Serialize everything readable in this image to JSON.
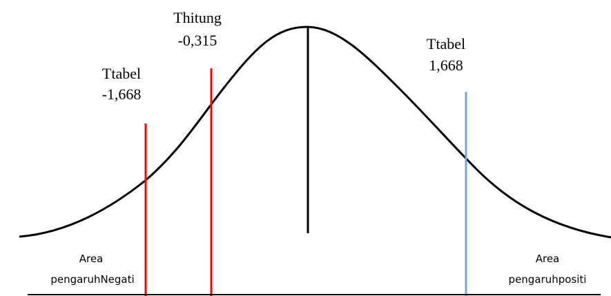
{
  "labels": {
    "thitung_title": "Thitung",
    "thitung_value": "-0,315",
    "ttabel_left_title": "Ttabel",
    "ttabel_left_value": "-1,668",
    "ttabel_right_title": "Ttabel",
    "ttabel_right_value": "1,668",
    "area_left_line1": "Area",
    "area_left_line2": "pengaruhNegati",
    "area_right_line1": "Area",
    "area_right_line2": "pengaruhpositi"
  },
  "colors": {
    "curve": "#000000",
    "center_line": "#000000",
    "ttabel_left_line": "#ff0000",
    "thitung_line": "#ff0000",
    "ttabel_right_line": "#6fa8dc",
    "baseline": "#000000"
  }
}
